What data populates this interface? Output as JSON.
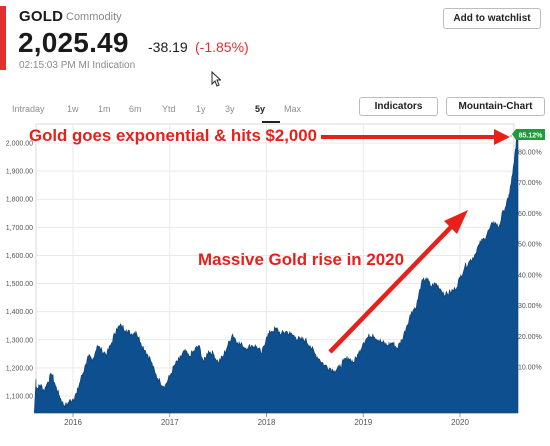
{
  "header": {
    "symbol": "GOLD",
    "category": "Commodity",
    "price": "2,025.49",
    "change": "-38.19",
    "change_pct": "(-1.85%)",
    "timestamp": "02:15:03 PM MI Indication",
    "watchlist_label": "Add to watchlist"
  },
  "toolbar": {
    "ranges": [
      "Intraday",
      "1w",
      "1m",
      "6m",
      "Ytd",
      "1y",
      "3y",
      "5y",
      "Max"
    ],
    "active_range": "5y",
    "indicators_label": "Indicators",
    "chart_style_label": "Mountain-Chart"
  },
  "colors": {
    "accent_red": "#e0312f",
    "area_fill": "#0e4f8f",
    "annotation_red": "#e8201c",
    "marker_green": "#1e9b3c"
  },
  "chart_data": {
    "type": "area",
    "title": "",
    "xlabel": "",
    "ylabel": "",
    "x_tick_labels": [
      "2016",
      "2017",
      "2018",
      "2019",
      "2020"
    ],
    "y_left_ticks": [
      "1,100.00",
      "1,200.00",
      "1,300.00",
      "1,400.00",
      "1,500.00",
      "1,600.00",
      "1,700.00",
      "1,800.00",
      "1,900.00",
      "2,000.00"
    ],
    "y_right_ticks": [
      "10.00%",
      "20.00%",
      "30.00%",
      "40.00%",
      "50.00%",
      "60.00%",
      "70.00%",
      "80.00%"
    ],
    "y_left_range": [
      1050,
      2040
    ],
    "x_range": [
      2015.6,
      2020.6
    ],
    "grid": true,
    "last_value_marker": "85.12%",
    "series": [
      {
        "x": [
          2015.6,
          2015.63,
          2015.66,
          2015.7,
          2015.74,
          2015.78,
          2015.82,
          2015.86,
          2015.9,
          2015.93,
          2015.96,
          2016.0,
          2016.04,
          2016.08,
          2016.12,
          2016.16,
          2016.2,
          2016.25,
          2016.3,
          2016.35,
          2016.4,
          2016.45,
          2016.5,
          2016.55,
          2016.6,
          2016.65,
          2016.7,
          2016.75,
          2016.8,
          2016.85,
          2016.9,
          2016.95,
          2017.0,
          2017.05,
          2017.1,
          2017.15,
          2017.2,
          2017.25,
          2017.3,
          2017.35,
          2017.4,
          2017.45,
          2017.5,
          2017.55,
          2017.6,
          2017.65,
          2017.7,
          2017.75,
          2017.8,
          2017.85,
          2017.9,
          2017.95,
          2018.0,
          2018.05,
          2018.1,
          2018.15,
          2018.2,
          2018.25,
          2018.3,
          2018.35,
          2018.4,
          2018.45,
          2018.5,
          2018.55,
          2018.6,
          2018.65,
          2018.7,
          2018.75,
          2018.8,
          2018.85,
          2018.9,
          2018.95,
          2019.0,
          2019.05,
          2019.1,
          2019.15,
          2019.2,
          2019.25,
          2019.3,
          2019.35,
          2019.4,
          2019.45,
          2019.5,
          2019.55,
          2019.6,
          2019.65,
          2019.7,
          2019.75,
          2019.8,
          2019.85,
          2019.9,
          2019.95,
          2020.0,
          2020.05,
          2020.1,
          2020.15,
          2020.2,
          2020.25,
          2020.3,
          2020.35,
          2020.4,
          2020.45,
          2020.5,
          2020.53,
          2020.56,
          2020.58,
          2020.6
        ],
        "y": [
          1160,
          1125,
          1140,
          1120,
          1150,
          1180,
          1135,
          1100,
          1070,
          1065,
          1080,
          1090,
          1110,
          1160,
          1200,
          1240,
          1225,
          1280,
          1260,
          1250,
          1290,
          1340,
          1350,
          1335,
          1320,
          1330,
          1290,
          1260,
          1230,
          1180,
          1150,
          1135,
          1170,
          1210,
          1230,
          1260,
          1240,
          1260,
          1280,
          1220,
          1260,
          1250,
          1220,
          1240,
          1280,
          1320,
          1290,
          1280,
          1270,
          1280,
          1275,
          1250,
          1310,
          1330,
          1340,
          1320,
          1330,
          1320,
          1310,
          1300,
          1300,
          1280,
          1250,
          1230,
          1210,
          1200,
          1190,
          1200,
          1225,
          1235,
          1220,
          1250,
          1290,
          1310,
          1320,
          1300,
          1290,
          1280,
          1290,
          1270,
          1300,
          1350,
          1400,
          1420,
          1500,
          1520,
          1490,
          1500,
          1480,
          1460,
          1470,
          1480,
          1520,
          1560,
          1580,
          1600,
          1640,
          1660,
          1690,
          1720,
          1700,
          1760,
          1800,
          1860,
          1930,
          2000,
          2025
        ]
      }
    ]
  },
  "annotations": {
    "top_text": "Gold goes exponential & hits $2,000",
    "middle_text": "Massive Gold rise in 2020"
  }
}
